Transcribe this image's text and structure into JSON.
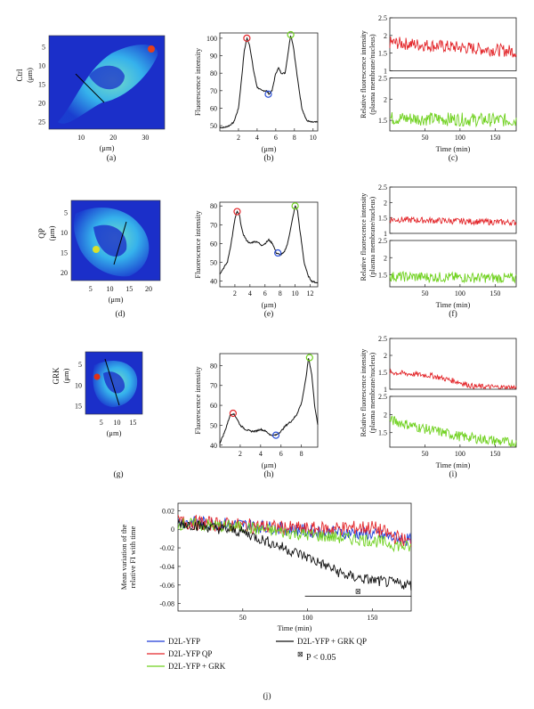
{
  "colors": {
    "ctrl": "#1d3ad6",
    "qp": "#e3262a",
    "grk": "#6fd11e",
    "grkqp": "#111111",
    "axis": "#222222"
  },
  "rows": [
    {
      "label": "(a)",
      "row_title": "Ctrl",
      "image_ylabel": "(μm)",
      "image_xlabel": "(μm)",
      "image_xticks": [
        "10",
        "20",
        "30"
      ],
      "image_yticks": [
        "5",
        "10",
        "15",
        "20",
        "25"
      ],
      "profile": {
        "label": "(b)",
        "ylabel": "Fluorescence intensity",
        "xlabel": "(μm)",
        "x_ticks": [
          "2",
          "4",
          "6",
          "8",
          "10"
        ],
        "xlim": [
          0,
          10.5
        ],
        "ylim": [
          47,
          103
        ],
        "y_ticks": [
          "50",
          "60",
          "70",
          "80",
          "90",
          "100"
        ],
        "x": [
          0,
          0.5,
          1,
          1.5,
          2,
          2.3,
          2.6,
          2.9,
          3.2,
          3.6,
          4,
          4.5,
          5,
          5.3,
          5.6,
          6,
          6.3,
          6.6,
          7,
          7.3,
          7.6,
          7.9,
          8.3,
          8.8,
          9.3,
          9.8,
          10.2,
          10.5
        ],
        "y": [
          49,
          49,
          50,
          52,
          60,
          75,
          92,
          100,
          96,
          82,
          72,
          70,
          70,
          68,
          70,
          80,
          83,
          80,
          80,
          91,
          102,
          95,
          78,
          60,
          53,
          52,
          52,
          52
        ],
        "markers": [
          {
            "x": 2.9,
            "y": 100,
            "color": "red"
          },
          {
            "x": 5.2,
            "y": 68,
            "color": "blue"
          },
          {
            "x": 7.6,
            "y": 102,
            "color": "green"
          }
        ]
      },
      "time": {
        "label": "(c)",
        "ylabel": "Relative fluorescence intensity (plasma membrane/nucleus)",
        "xlabel": "Time (min)",
        "x_ticks": [
          "50",
          "100",
          "150"
        ],
        "red_ticks": [
          "1",
          "1.5",
          "2",
          "2.5"
        ],
        "green_ticks": [
          "1.5",
          "2",
          "2.5"
        ],
        "red_ylim": [
          1,
          2.5
        ],
        "green_ylim": [
          1.25,
          2.5
        ],
        "red_trend": {
          "x": [
            0,
            180
          ],
          "y": [
            1.8,
            1.55
          ],
          "noise": 0.18
        },
        "green_trend": {
          "x": [
            0,
            180
          ],
          "y": [
            1.55,
            1.5
          ],
          "noise": 0.16
        }
      }
    },
    {
      "label": "(d)",
      "row_title": "QP",
      "image_ylabel": "(μm)",
      "image_xlabel": "(μm)",
      "image_xticks": [
        "5",
        "10",
        "15",
        "20"
      ],
      "image_yticks": [
        "5",
        "10",
        "15",
        "20"
      ],
      "profile": {
        "label": "(e)",
        "ylabel": "Fluorescence intensity",
        "xlabel": "(μm)",
        "x_ticks": [
          "2",
          "4",
          "6",
          "8",
          "10",
          "12"
        ],
        "xlim": [
          0,
          13
        ],
        "ylim": [
          37,
          82
        ],
        "y_ticks": [
          "40",
          "50",
          "60",
          "70",
          "80"
        ],
        "x": [
          0,
          0.5,
          1,
          1.5,
          2,
          2.3,
          2.6,
          3,
          3.5,
          4,
          4.5,
          5,
          5.5,
          6,
          6.5,
          7,
          7.5,
          8,
          8.5,
          9,
          9.5,
          10,
          10.3,
          10.7,
          11.2,
          11.7,
          12.2,
          13
        ],
        "y": [
          44,
          47,
          50,
          60,
          73,
          77,
          75,
          66,
          62,
          60,
          61,
          61,
          59,
          60,
          62,
          60,
          55,
          54,
          55,
          60,
          70,
          80,
          78,
          65,
          50,
          43,
          40,
          39
        ],
        "markers": [
          {
            "x": 2.3,
            "y": 77,
            "color": "red"
          },
          {
            "x": 7.7,
            "y": 55,
            "color": "blue"
          },
          {
            "x": 10,
            "y": 80,
            "color": "green"
          }
        ]
      },
      "time": {
        "label": "(f)",
        "ylabel": "Relative fluorescence intensity (plasma membrane/nucleus)",
        "xlabel": "Time (min)",
        "x_ticks": [
          "50",
          "100",
          "150"
        ],
        "red_ticks": [
          "1",
          "1.5",
          "2",
          "2.5"
        ],
        "green_ticks": [
          "1.5",
          "2",
          "2.5"
        ],
        "red_ylim": [
          1,
          2.5
        ],
        "green_ylim": [
          1.15,
          2.5
        ],
        "red_trend": {
          "x": [
            0,
            180
          ],
          "y": [
            1.45,
            1.35
          ],
          "noise": 0.1
        },
        "green_trend": {
          "x": [
            0,
            180
          ],
          "y": [
            1.45,
            1.4
          ],
          "noise": 0.15
        }
      }
    },
    {
      "label": "(g)",
      "row_title": "GRK",
      "image_ylabel": "(μm)",
      "image_xlabel": "(μm)",
      "image_xticks": [
        "5",
        "10",
        "15"
      ],
      "image_yticks": [
        "5",
        "10",
        "15"
      ],
      "profile": {
        "label": "(h)",
        "ylabel": "Fluorescence intensity",
        "xlabel": "(μm)",
        "x_ticks": [
          "2",
          "4",
          "6",
          "8"
        ],
        "xlim": [
          0,
          9.6
        ],
        "ylim": [
          39,
          86
        ],
        "y_ticks": [
          "40",
          "50",
          "60",
          "70",
          "80"
        ],
        "x": [
          0,
          0.5,
          1,
          1.3,
          1.6,
          2,
          2.5,
          3,
          3.5,
          4,
          4.5,
          5,
          5.5,
          6,
          6.5,
          7,
          7.5,
          8,
          8.4,
          8.7,
          9,
          9.3,
          9.6
        ],
        "y": [
          41,
          47,
          55,
          56,
          54,
          50,
          48,
          47,
          47,
          48,
          47,
          45,
          45,
          47,
          50,
          52,
          55,
          61,
          72,
          84,
          76,
          60,
          50
        ],
        "markers": [
          {
            "x": 1.3,
            "y": 56,
            "color": "red"
          },
          {
            "x": 5.5,
            "y": 45,
            "color": "blue"
          },
          {
            "x": 8.8,
            "y": 84,
            "color": "green"
          }
        ]
      },
      "time": {
        "label": "(i)",
        "ylabel": "Relative fluorescence intensity (plasma membrane/nucleus)",
        "xlabel": "Time (min)",
        "x_ticks": [
          "50",
          "100",
          "150"
        ],
        "red_ticks": [
          "1",
          "1.5",
          "2",
          "2.5"
        ],
        "green_ticks": [
          "1.5",
          "2",
          "2.5"
        ],
        "red_ylim": [
          1,
          2.5
        ],
        "green_ylim": [
          1.1,
          2.5
        ],
        "red_trend": {
          "x": [
            0,
            60,
            100,
            120,
            180
          ],
          "y": [
            1.5,
            1.4,
            1.2,
            1.08,
            1.05
          ],
          "noise": 0.08
        },
        "green_trend": {
          "x": [
            0,
            40,
            100,
            180
          ],
          "y": [
            1.85,
            1.65,
            1.4,
            1.2
          ],
          "noise": 0.14
        }
      }
    }
  ],
  "chart_data": {
    "type": "line",
    "label": "(j)",
    "ylabel": "Mean variation of the relative FI with time",
    "xlabel": "Time (min)",
    "x_ticks": [
      "50",
      "100",
      "150"
    ],
    "y_ticks": [
      "0.02",
      "0",
      "-0.02",
      "-0.04",
      "-0.06",
      "-0.08"
    ],
    "xlim": [
      0,
      180
    ],
    "ylim": [
      -0.088,
      0.028
    ],
    "series": [
      {
        "name": "D2L-YFP",
        "key": "ctrl",
        "x": [
          0,
          50,
          100,
          150,
          180
        ],
        "y": [
          0.008,
          0.005,
          -0.002,
          -0.005,
          -0.012
        ],
        "noise": 0.007
      },
      {
        "name": "D2L-YFP QP",
        "key": "qp",
        "x": [
          0,
          50,
          100,
          150,
          180
        ],
        "y": [
          0.008,
          0.004,
          0.0,
          0.002,
          -0.015
        ],
        "noise": 0.008
      },
      {
        "name": "D2L-YFP + GRK",
        "key": "grk",
        "x": [
          0,
          50,
          100,
          150,
          180
        ],
        "y": [
          0.006,
          0.002,
          -0.006,
          -0.012,
          -0.02
        ],
        "noise": 0.007
      },
      {
        "name": "D2L-YFP + GRK QP",
        "key": "grkqp",
        "x": [
          0,
          50,
          100,
          130,
          150,
          180
        ],
        "y": [
          0.007,
          -0.003,
          -0.03,
          -0.05,
          -0.055,
          -0.06
        ],
        "noise": 0.006
      }
    ],
    "significance": {
      "x_start": 98,
      "x_end": 180,
      "y": -0.072,
      "symbol": "⊠"
    },
    "legend": {
      "items": [
        {
          "text": "D2L-YFP",
          "key": "ctrl"
        },
        {
          "text": "D2L-YFP QP",
          "key": "qp"
        },
        {
          "text": "D2L-YFP + GRK",
          "key": "grk"
        },
        {
          "text": "D2L-YFP + GRK QP",
          "key": "grkqp"
        }
      ],
      "pvalue": "P < 0.05",
      "pvalue_symbol": "⊠"
    }
  }
}
